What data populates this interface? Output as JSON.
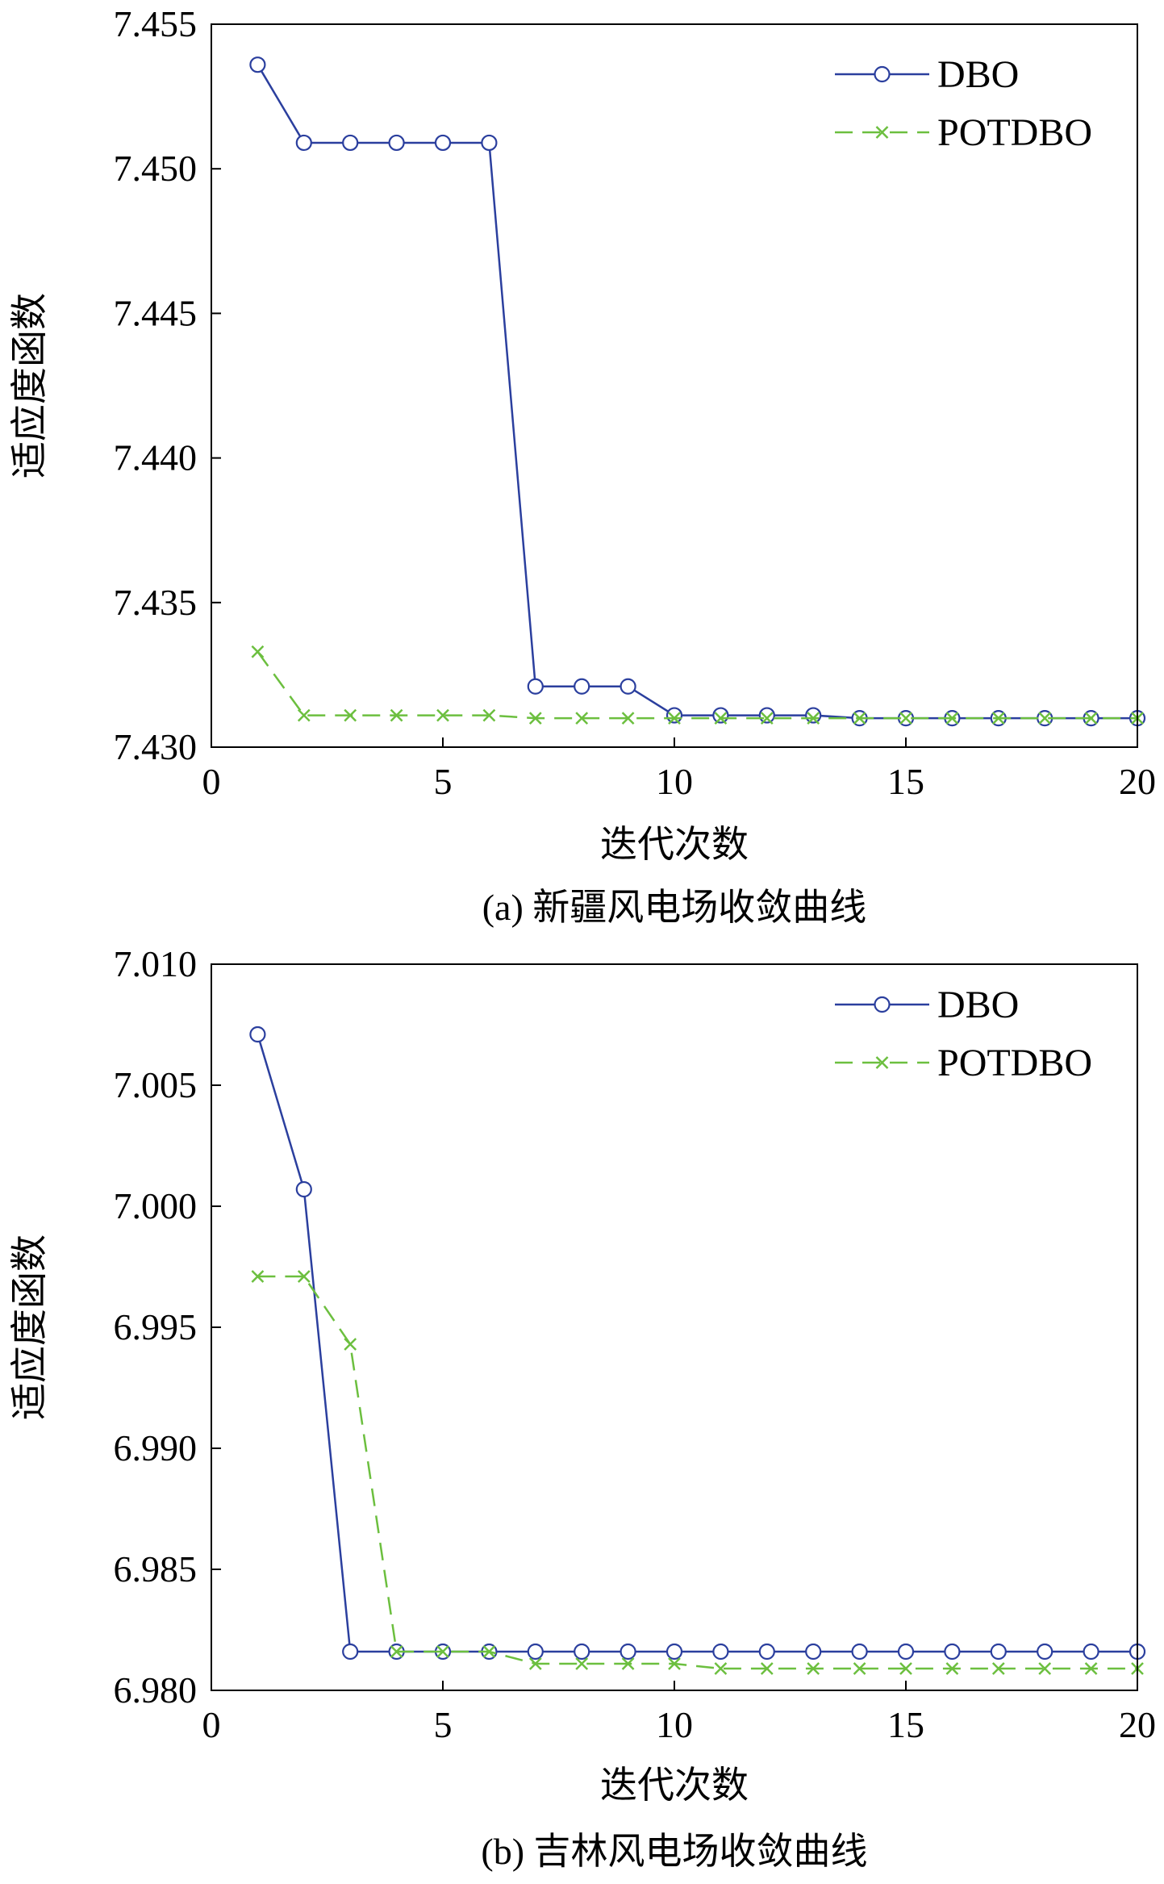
{
  "chart_data": [
    {
      "type": "line",
      "caption": "(a) 新疆风电场收敛曲线",
      "xlabel": "迭代次数",
      "ylabel": "适应度函数",
      "xlim": [
        0,
        20
      ],
      "ylim": [
        7.43,
        7.455
      ],
      "xticks": [
        0,
        5,
        10,
        15,
        20
      ],
      "yticks": [
        7.43,
        7.435,
        7.44,
        7.445,
        7.45,
        7.455
      ],
      "ytick_labels": [
        "7.430",
        "7.435",
        "7.440",
        "7.445",
        "7.450",
        "7.455"
      ],
      "grid": false,
      "legend_position": "top-right",
      "x": [
        1,
        2,
        3,
        4,
        5,
        6,
        7,
        8,
        9,
        10,
        11,
        12,
        13,
        14,
        15,
        16,
        17,
        18,
        19,
        20
      ],
      "series": [
        {
          "name": "DBO",
          "color": "#2b3f9e",
          "style": "solid",
          "marker": "circle",
          "values": [
            7.4536,
            7.4509,
            7.4509,
            7.4509,
            7.4509,
            7.4509,
            7.4321,
            7.4321,
            7.4321,
            7.4311,
            7.4311,
            7.4311,
            7.4311,
            7.431,
            7.431,
            7.431,
            7.431,
            7.431,
            7.431,
            7.431
          ]
        },
        {
          "name": "POTDBO",
          "color": "#6cbf3f",
          "style": "dashed",
          "marker": "x",
          "values": [
            7.4333,
            7.4311,
            7.4311,
            7.4311,
            7.4311,
            7.4311,
            7.431,
            7.431,
            7.431,
            7.431,
            7.431,
            7.431,
            7.431,
            7.431,
            7.431,
            7.431,
            7.431,
            7.431,
            7.431,
            7.431
          ]
        }
      ]
    },
    {
      "type": "line",
      "caption": "(b) 吉林风电场收敛曲线",
      "xlabel": "迭代次数",
      "ylabel": "适应度函数",
      "xlim": [
        0,
        20
      ],
      "ylim": [
        6.98,
        7.01
      ],
      "xticks": [
        0,
        5,
        10,
        15,
        20
      ],
      "yticks": [
        6.98,
        6.985,
        6.99,
        6.995,
        7.0,
        7.005,
        7.01
      ],
      "ytick_labels": [
        "6.980",
        "6.985",
        "6.990",
        "6.995",
        "7.000",
        "7.005",
        "7.010"
      ],
      "grid": false,
      "legend_position": "top-right",
      "x": [
        1,
        2,
        3,
        4,
        5,
        6,
        7,
        8,
        9,
        10,
        11,
        12,
        13,
        14,
        15,
        16,
        17,
        18,
        19,
        20
      ],
      "series": [
        {
          "name": "DBO",
          "color": "#2b3f9e",
          "style": "solid",
          "marker": "circle",
          "values": [
            7.0071,
            7.0007,
            6.9816,
            6.9816,
            6.9816,
            6.9816,
            6.9816,
            6.9816,
            6.9816,
            6.9816,
            6.9816,
            6.9816,
            6.9816,
            6.9816,
            6.9816,
            6.9816,
            6.9816,
            6.9816,
            6.9816,
            6.9816
          ]
        },
        {
          "name": "POTDBO",
          "color": "#6cbf3f",
          "style": "dashed",
          "marker": "x",
          "values": [
            6.9971,
            6.9971,
            6.9943,
            6.9816,
            6.9816,
            6.9816,
            6.9811,
            6.9811,
            6.9811,
            6.9811,
            6.9809,
            6.9809,
            6.9809,
            6.9809,
            6.9809,
            6.9809,
            6.9809,
            6.9809,
            6.9809,
            6.9809
          ]
        }
      ]
    }
  ]
}
